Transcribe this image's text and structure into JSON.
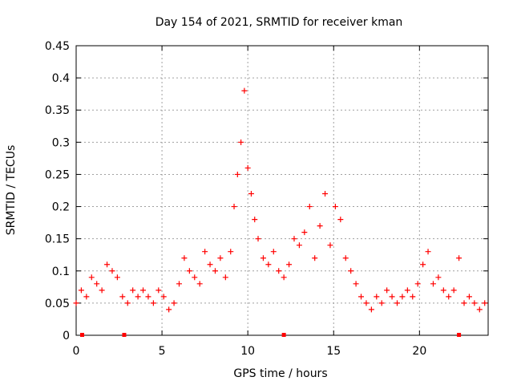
{
  "chart_data": {
    "type": "scatter",
    "title": "Day 154 of 2021, SRMTID for receiver kman",
    "xlabel": "GPS time / hours",
    "ylabel": "SRMTID / TECUs",
    "xlim": [
      0,
      24
    ],
    "ylim": [
      0,
      0.45
    ],
    "x_ticks": [
      0,
      5,
      10,
      15,
      20
    ],
    "x_tick_labels": [
      "0",
      "5",
      "10",
      "15",
      "20"
    ],
    "y_ticks": [
      0,
      0.05,
      0.1,
      0.15,
      0.2,
      0.25,
      0.3,
      0.35,
      0.4,
      0.45
    ],
    "y_tick_labels": [
      "0",
      "0.05",
      "0.1",
      "0.15",
      "0.2",
      "0.25",
      "0.3",
      "0.35",
      "0.4",
      "0.45"
    ],
    "grid": true,
    "marker": "plus",
    "series": [
      {
        "name": "SRMTID",
        "color": "#ff0000",
        "x": [
          0.0,
          0.3,
          0.6,
          0.9,
          1.2,
          1.5,
          1.8,
          2.1,
          2.4,
          2.7,
          3.0,
          3.3,
          3.6,
          3.9,
          4.2,
          4.5,
          4.8,
          5.1,
          5.4,
          5.7,
          6.0,
          6.3,
          6.6,
          6.9,
          7.2,
          7.5,
          7.8,
          8.1,
          8.4,
          8.7,
          9.0,
          9.2,
          9.4,
          9.6,
          9.8,
          10.0,
          10.2,
          10.4,
          10.6,
          10.9,
          11.2,
          11.5,
          11.8,
          12.1,
          12.4,
          12.7,
          13.0,
          13.3,
          13.6,
          13.9,
          14.2,
          14.5,
          14.8,
          15.1,
          15.4,
          15.7,
          16.0,
          16.3,
          16.6,
          16.9,
          17.2,
          17.5,
          17.8,
          18.1,
          18.4,
          18.7,
          19.0,
          19.3,
          19.6,
          19.9,
          20.2,
          20.5,
          20.8,
          21.1,
          21.4,
          21.7,
          22.0,
          22.3,
          22.6,
          22.9,
          23.2,
          23.5,
          23.8
        ],
        "y": [
          0.05,
          0.07,
          0.06,
          0.09,
          0.08,
          0.07,
          0.11,
          0.1,
          0.09,
          0.06,
          0.05,
          0.07,
          0.06,
          0.07,
          0.06,
          0.05,
          0.07,
          0.06,
          0.04,
          0.05,
          0.08,
          0.12,
          0.1,
          0.09,
          0.08,
          0.13,
          0.11,
          0.1,
          0.12,
          0.09,
          0.13,
          0.2,
          0.25,
          0.3,
          0.38,
          0.26,
          0.22,
          0.18,
          0.15,
          0.12,
          0.11,
          0.13,
          0.1,
          0.09,
          0.11,
          0.15,
          0.14,
          0.16,
          0.2,
          0.12,
          0.17,
          0.22,
          0.14,
          0.2,
          0.18,
          0.12,
          0.1,
          0.08,
          0.06,
          0.05,
          0.04,
          0.06,
          0.05,
          0.07,
          0.06,
          0.05,
          0.06,
          0.07,
          0.06,
          0.08,
          0.11,
          0.13,
          0.08,
          0.09,
          0.07,
          0.06,
          0.07,
          0.12,
          0.05,
          0.06,
          0.05,
          0.04,
          0.05
        ]
      }
    ],
    "x_markers": [
      0.35,
      2.8,
      12.1,
      22.3
    ]
  }
}
